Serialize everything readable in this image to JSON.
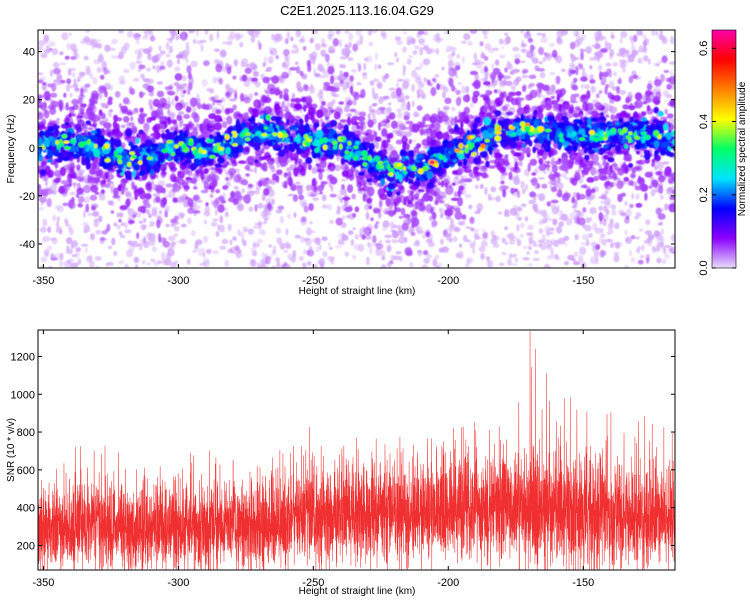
{
  "title": "C2E1.2025.113.16.04.G29",
  "chart_data": [
    {
      "type": "heatmap",
      "xlabel": "Height of straight line (km)",
      "ylabel": "Frequency (Hz)",
      "xlim": [
        -352,
        -116
      ],
      "ylim": [
        -50,
        49
      ],
      "xticks": [
        -350,
        -300,
        -250,
        -200,
        -150
      ],
      "xtick_labels": [
        "-350",
        "-300",
        "-250",
        "-200",
        "-150"
      ],
      "yticks": [
        -40,
        -20,
        0,
        20,
        40
      ],
      "ytick_labels": [
        "-40",
        "-20",
        "0",
        "20",
        "40"
      ],
      "colorbar": {
        "label": "Normalized spectral amplitude",
        "range": [
          0,
          0.65
        ],
        "ticks": [
          0,
          0.2,
          0.4,
          0.6
        ],
        "tick_labels": [
          "0.0",
          "0.2",
          "0.4",
          "0.6"
        ],
        "colormap": [
          "#e8dcf8",
          "#8a00ff",
          "#0000ff",
          "#00e5ff",
          "#00ff66",
          "#ffff00",
          "#ff8000",
          "#ff0000",
          "#ff00aa"
        ]
      },
      "ridge": {
        "x": [
          -352,
          -340,
          -330,
          -320,
          -310,
          -300,
          -290,
          -280,
          -270,
          -260,
          -250,
          -240,
          -230,
          -220,
          -210,
          -205,
          -200,
          -190,
          -180,
          -170,
          -160,
          -150,
          -140,
          -130,
          -116
        ],
        "y": [
          1,
          2,
          1,
          -5,
          -3,
          1,
          -2,
          3,
          6,
          5,
          3,
          2,
          -5,
          -10,
          -8,
          -6,
          -3,
          2,
          7,
          8,
          5,
          5,
          6,
          5,
          3
        ]
      },
      "peak": {
        "x": -206,
        "y": -6,
        "value": 0.62
      }
    },
    {
      "type": "line",
      "xlabel": "Height of straight line (km)",
      "ylabel": "SNR (10 * v/v)",
      "xlim": [
        -352,
        -116
      ],
      "ylim": [
        70,
        1340
      ],
      "xticks": [
        -350,
        -300,
        -250,
        -200,
        -150
      ],
      "xtick_labels": [
        "-350",
        "-300",
        "-250",
        "-200",
        "-150"
      ],
      "yticks": [
        200,
        400,
        600,
        800,
        1000,
        1200
      ],
      "ytick_labels": [
        "200",
        "400",
        "600",
        "800",
        "1000",
        "1200"
      ],
      "color": "#f03030",
      "envelope": {
        "x": [
          -352,
          -340,
          -330,
          -320,
          -310,
          -300,
          -290,
          -280,
          -270,
          -260,
          -250,
          -240,
          -230,
          -220,
          -210,
          -200,
          -190,
          -180,
          -170,
          -160,
          -150,
          -140,
          -130,
          -116
        ],
        "low": [
          110,
          120,
          120,
          110,
          110,
          110,
          120,
          120,
          120,
          130,
          150,
          150,
          160,
          150,
          160,
          170,
          180,
          180,
          160,
          130,
          120,
          130,
          130,
          120
        ],
        "high": [
          420,
          460,
          500,
          470,
          450,
          460,
          470,
          470,
          490,
          500,
          530,
          550,
          560,
          560,
          560,
          580,
          600,
          620,
          640,
          640,
          600,
          560,
          540,
          520
        ],
        "spike": [
          600,
          700,
          820,
          680,
          650,
          720,
          700,
          730,
          690,
          720,
          850,
          740,
          820,
          830,
          760,
          800,
          1020,
          920,
          1340,
          1260,
          980,
          980,
          900,
          920
        ]
      }
    }
  ]
}
